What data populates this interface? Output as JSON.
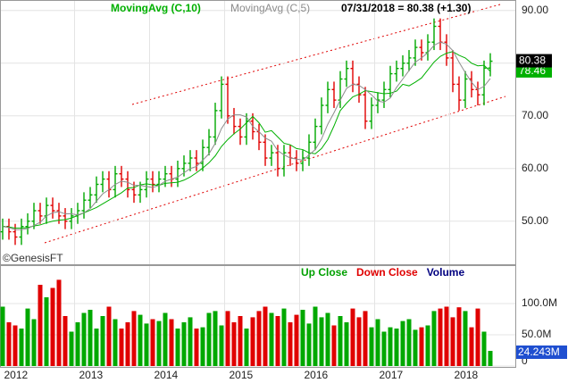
{
  "chart_data": {
    "type": "ohlc",
    "last_label": "07/31/2018 = 80.38 (+1.30)",
    "credit": "©GenesisFT",
    "up_color": "#00a800",
    "down_color": "#e00000",
    "open": [
      48,
      49,
      48,
      47,
      49,
      50,
      52,
      51,
      53,
      52,
      51,
      50,
      51,
      52,
      54,
      55,
      57,
      58,
      56,
      59,
      58,
      56,
      55,
      56,
      58,
      57,
      58,
      59,
      58,
      60,
      61,
      62,
      61,
      64,
      66,
      71,
      76,
      70,
      68,
      66,
      69,
      67,
      65,
      62,
      63,
      60,
      63,
      62,
      61,
      62,
      65,
      68,
      72,
      75,
      73,
      77,
      79,
      76,
      74,
      69,
      72,
      73,
      75,
      78,
      79,
      80,
      81,
      83,
      82,
      84,
      87,
      84,
      81,
      76,
      73,
      77,
      75,
      74,
      79.08
    ],
    "high": [
      50.5,
      50.5,
      49.5,
      50.5,
      51.5,
      53.5,
      53.5,
      54.5,
      54.5,
      53.5,
      52.5,
      52.5,
      53.5,
      55.5,
      56.5,
      58.5,
      59.5,
      59.5,
      60.5,
      60.5,
      59.5,
      57.5,
      57.5,
      59.5,
      59.5,
      59.5,
      60.5,
      60.5,
      61.5,
      62.5,
      63.5,
      63.5,
      65.5,
      67.5,
      72.5,
      77.5,
      77.5,
      71.5,
      69.5,
      70.5,
      70.5,
      68.5,
      66.5,
      64.5,
      64.5,
      64.5,
      64.5,
      63.5,
      63.5,
      66.5,
      69.5,
      73.5,
      76.5,
      76.5,
      78.5,
      80.5,
      80.5,
      77.5,
      75.5,
      73.5,
      74.5,
      76.5,
      79.5,
      80.5,
      81.5,
      82.5,
      84.5,
      84.5,
      85.5,
      88.5,
      88.5,
      85.5,
      82.5,
      77.5,
      78.5,
      78.5,
      76.5,
      80.5,
      81.9
    ],
    "low": [
      46.5,
      46.5,
      45.5,
      45.5,
      47.5,
      48.5,
      49.5,
      49.5,
      50.5,
      49.5,
      48.5,
      48.5,
      49.5,
      50.5,
      52.5,
      53.5,
      55.5,
      54.5,
      54.5,
      56.5,
      54.5,
      53.5,
      53.5,
      54.5,
      55.5,
      55.5,
      56.5,
      56.5,
      56.5,
      58.5,
      59.5,
      59.5,
      59.5,
      62.5,
      64.5,
      69.5,
      68.5,
      66.5,
      64.5,
      64.5,
      65.5,
      63.5,
      60.5,
      60.5,
      58.5,
      58.5,
      60.5,
      59.5,
      59.5,
      60.5,
      63.5,
      66.5,
      70.5,
      71.5,
      71.5,
      75.5,
      74.5,
      72.5,
      67.5,
      67.5,
      70.5,
      71.5,
      73.5,
      76.5,
      77.5,
      78.5,
      79.5,
      80.5,
      80.5,
      82.5,
      82.5,
      79.5,
      74.5,
      71,
      71.5,
      73.5,
      72,
      72,
      77.5
    ],
    "close": [
      49,
      48,
      47,
      49,
      50,
      52,
      51,
      53,
      52,
      51,
      50,
      51,
      52,
      54,
      55,
      57,
      58,
      56,
      59,
      58,
      56,
      55,
      56,
      58,
      57,
      58,
      59,
      58,
      60,
      61,
      62,
      61,
      64,
      66,
      71,
      76,
      70,
      68,
      66,
      69,
      67,
      65,
      62,
      63,
      60,
      63,
      62,
      61,
      62,
      65,
      68,
      72,
      75,
      73,
      77,
      79,
      76,
      74,
      69,
      72,
      73,
      75,
      78,
      79,
      80,
      81,
      83,
      82,
      84,
      87,
      84,
      81,
      76,
      73,
      77,
      75,
      74,
      79.08,
      80.38
    ],
    "moving_averages": [
      {
        "name": "MovingAvg (C,10)",
        "color": "#00b000",
        "values": [
          49,
          48.9,
          48.7,
          48.7,
          48.8,
          49.1,
          49.3,
          49.7,
          50,
          50.2,
          50.3,
          50.6,
          51.1,
          51.6,
          52.1,
          52.6,
          53.3,
          54,
          54.7,
          55.4,
          56.3,
          56.4,
          56.9,
          57.1,
          56.9,
          56.8,
          57.2,
          57.3,
          57.4,
          57.8,
          58.4,
          59.2,
          60.1,
          61.1,
          62.4,
          64.2,
          65.5,
          66.6,
          67.5,
          68.7,
          69.9,
          68.7,
          66.9,
          67.2,
          66,
          64.8,
          64.5,
          63.8,
          63.6,
          63,
          62.8,
          63.8,
          65.5,
          68.1,
          71,
          72.4,
          73.6,
          74.1,
          74.8,
          74.6,
          74.4,
          74.2,
          74.3,
          74.7,
          76,
          75.7,
          76.4,
          77.2,
          78.7,
          80.2,
          81.3,
          81.9,
          82.2,
          81.5,
          81,
          80,
          79.5,
          79.6,
          78.46
        ]
      },
      {
        "name": "MovingAvg (C,5)",
        "color": "#8c8c8c",
        "values": [
          49,
          48.8,
          48.4,
          48.4,
          48.6,
          49.2,
          49.8,
          51,
          51.6,
          51.8,
          51.4,
          51.4,
          51.2,
          51.6,
          52.4,
          53.8,
          55.2,
          56,
          57,
          57.6,
          57.4,
          56.8,
          56.8,
          56.6,
          56.4,
          56.8,
          57.6,
          58,
          58.4,
          59.2,
          60,
          60.4,
          61.6,
          62.8,
          64.8,
          67.6,
          69.4,
          70.2,
          70.2,
          69.8,
          68,
          67,
          65.8,
          65.2,
          63.4,
          62.6,
          62,
          61.8,
          61.6,
          62.6,
          63.6,
          65.6,
          68.4,
          70.6,
          73,
          75.2,
          76,
          75.8,
          75,
          74,
          72.8,
          72.6,
          73.4,
          75.4,
          77,
          78.6,
          80.2,
          81,
          82,
          83.4,
          84,
          83.6,
          82.4,
          80.2,
          78.2,
          76.4,
          75,
          75.6,
          77.09
        ]
      }
    ],
    "ylim": [
      42,
      92
    ],
    "yticks": [
      {
        "value": 50,
        "label": "50.00"
      },
      {
        "value": 60,
        "label": "60.00"
      },
      {
        "value": 70,
        "label": "70.00"
      },
      {
        "value": 80,
        "label": "80.00"
      },
      {
        "value": 90,
        "label": "90.00"
      }
    ],
    "years": [
      "2012",
      "2013",
      "2014",
      "2015",
      "2016",
      "2017",
      "2018"
    ],
    "legend": [
      {
        "label": "Up Close",
        "color": "#00a000"
      },
      {
        "label": "Down Close",
        "color": "#e00000"
      },
      {
        "label": "Volume",
        "color": "#000080"
      }
    ],
    "volume": {
      "values": [
        95,
        70,
        65,
        60,
        92,
        75,
        130,
        110,
        125,
        138,
        80,
        55,
        70,
        85,
        90,
        60,
        80,
        95,
        75,
        60,
        70,
        88,
        82,
        68,
        75,
        72,
        85,
        75,
        60,
        70,
        78,
        60,
        62,
        85,
        88,
        65,
        88,
        70,
        80,
        60,
        78,
        88,
        95,
        85,
        80,
        92,
        70,
        82,
        90,
        68,
        95,
        78,
        85,
        65,
        80,
        70,
        92,
        78,
        88,
        62,
        75,
        55,
        62,
        60,
        72,
        75,
        58,
        62,
        65,
        88,
        92,
        95,
        78,
        94,
        88,
        62,
        92,
        55,
        24.243
      ],
      "value_labels": {
        "78": "24.243M"
      },
      "label_color": "#1f4fd0",
      "ylim": [
        0,
        160
      ],
      "yticks": [
        0,
        {
          "value": 50,
          "label": "50.0M"
        },
        {
          "value": 100,
          "label": "100.0M"
        }
      ]
    }
  }
}
